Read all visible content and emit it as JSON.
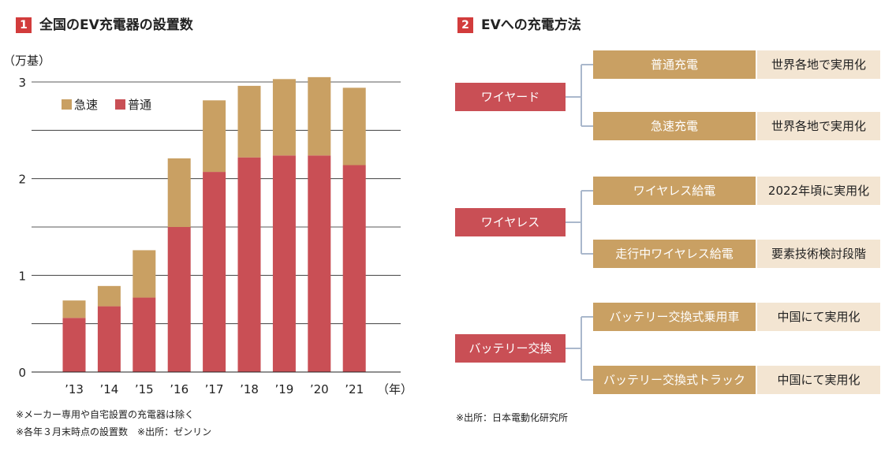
{
  "section1": {
    "num": "1",
    "title": "全国のEV充電器の設置数"
  },
  "section2": {
    "num": "2",
    "title": "EVへの充電方法"
  },
  "chart_data": {
    "type": "bar",
    "stacked": true,
    "unit_label": "（万基）",
    "xlabel": "（年）",
    "categories": [
      "’13",
      "’14",
      "’15",
      "’16",
      "’17",
      "’18",
      "’19",
      "’20",
      "’21"
    ],
    "yticks": [
      "0",
      "1",
      "2",
      "3"
    ],
    "ylim": [
      0,
      3
    ],
    "grid": true,
    "legend_position": "top-left",
    "series": [
      {
        "name": "普通",
        "color": "#c94f55",
        "values": [
          0.56,
          0.68,
          0.77,
          1.5,
          2.07,
          2.22,
          2.24,
          2.24,
          2.14
        ]
      },
      {
        "name": "急速",
        "color": "#c9a063",
        "values": [
          0.18,
          0.21,
          0.49,
          0.71,
          0.74,
          0.74,
          0.79,
          0.81,
          0.8
        ]
      }
    ]
  },
  "notes1": [
    "※メーカー専用や自宅設置の充電器は除く",
    "※各年３月末時点の設置数　※出所：ゼンリン"
  ],
  "notes2": [
    "※出所：日本電動化研究所"
  ],
  "methods": [
    {
      "category": "ワイヤード",
      "items": [
        {
          "method": "普通充電",
          "status": "世界各地で実用化"
        },
        {
          "method": "急速充電",
          "status": "世界各地で実用化"
        }
      ]
    },
    {
      "category": "ワイヤレス",
      "items": [
        {
          "method": "ワイヤレス給電",
          "status": "2022年頃に実用化"
        },
        {
          "method": "走行中ワイヤレス給電",
          "status": "要素技術検討段階"
        }
      ]
    },
    {
      "category": "バッテリー交換",
      "items": [
        {
          "method": "バッテリー交換式乗用車",
          "status": "中国にて実用化"
        },
        {
          "method": "バッテリー交換式トラック",
          "status": "中国にて実用化"
        }
      ]
    }
  ]
}
